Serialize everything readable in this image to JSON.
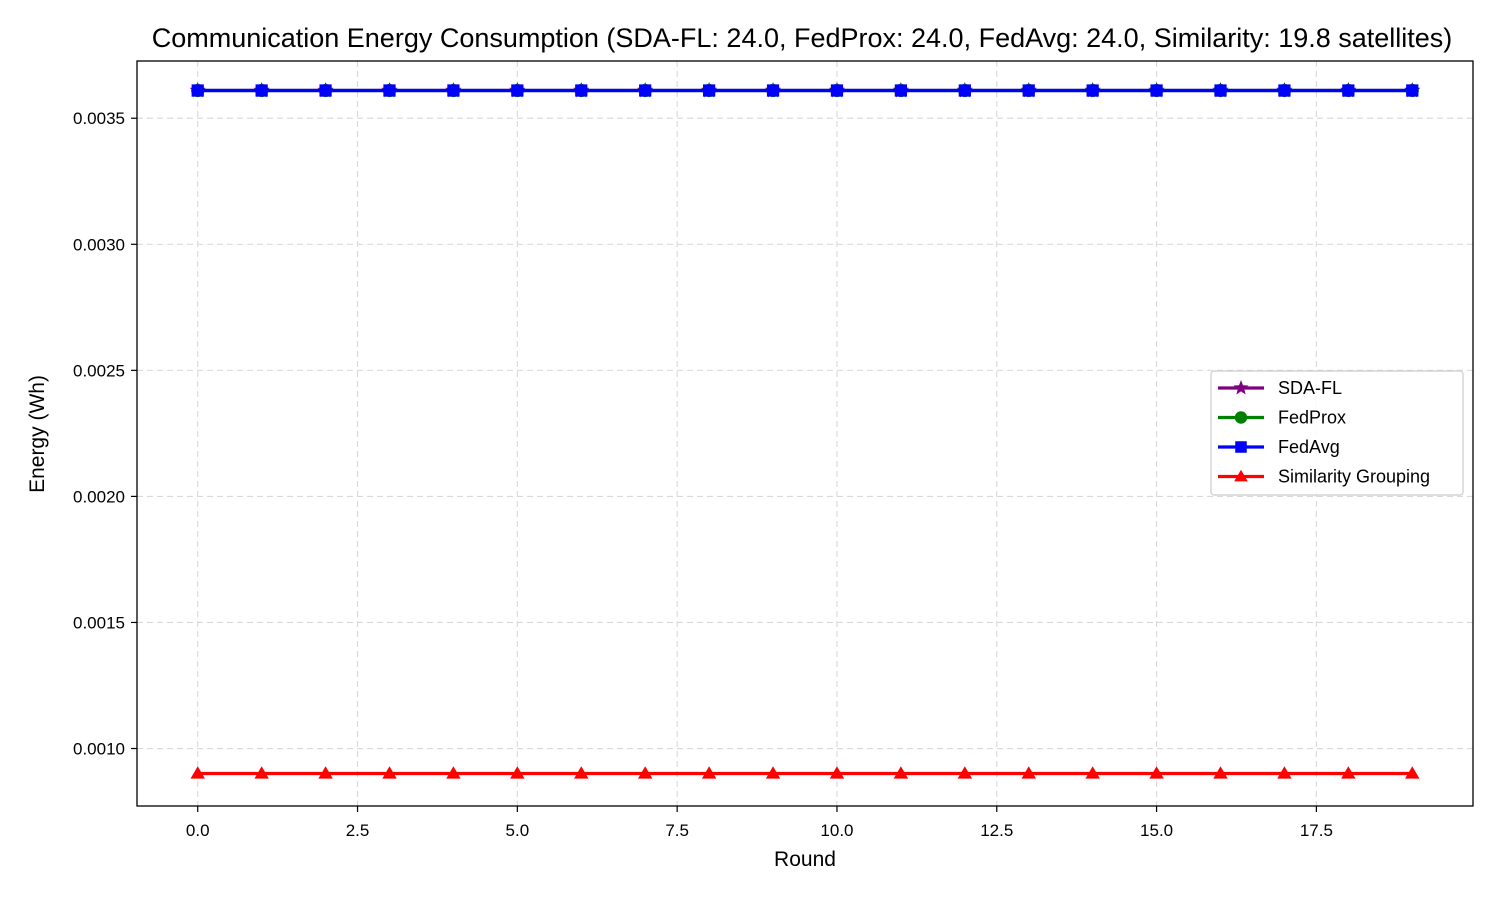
{
  "chart_data": {
    "type": "line",
    "title": "Communication Energy Consumption (SDA-FL: 24.0, FedProx: 24.0, FedAvg: 24.0, Similarity: 19.8 satellites)",
    "xlabel": "Round",
    "ylabel": "Energy (Wh)",
    "xlim": [
      -0.95,
      19.95
    ],
    "ylim": [
      0.000772,
      0.003727
    ],
    "xticks": [
      0.0,
      2.5,
      5.0,
      7.5,
      10.0,
      12.5,
      15.0,
      17.5
    ],
    "xtick_labels": [
      "0.0",
      "2.5",
      "5.0",
      "7.5",
      "10.0",
      "12.5",
      "15.0",
      "17.5"
    ],
    "yticks": [
      0.001,
      0.0015,
      0.002,
      0.0025,
      0.003,
      0.0035
    ],
    "ytick_labels": [
      "0.0010",
      "0.0015",
      "0.0020",
      "0.0025",
      "0.0030",
      "0.0035"
    ],
    "grid": true,
    "legend_position": "center-right",
    "x": [
      0,
      1,
      2,
      3,
      4,
      5,
      6,
      7,
      8,
      9,
      10,
      11,
      12,
      13,
      14,
      15,
      16,
      17,
      18,
      19
    ],
    "series": [
      {
        "name": "SDA-FL",
        "color": "#800080",
        "marker": "star",
        "values": [
          0.00361,
          0.00361,
          0.00361,
          0.00361,
          0.00361,
          0.00361,
          0.00361,
          0.00361,
          0.00361,
          0.00361,
          0.00361,
          0.00361,
          0.00361,
          0.00361,
          0.00361,
          0.00361,
          0.00361,
          0.00361,
          0.00361,
          0.00361
        ]
      },
      {
        "name": "FedProx",
        "color": "#008000",
        "marker": "circle",
        "values": [
          0.00361,
          0.00361,
          0.00361,
          0.00361,
          0.00361,
          0.00361,
          0.00361,
          0.00361,
          0.00361,
          0.00361,
          0.00361,
          0.00361,
          0.00361,
          0.00361,
          0.00361,
          0.00361,
          0.00361,
          0.00361,
          0.00361,
          0.00361
        ]
      },
      {
        "name": "FedAvg",
        "color": "#0000ff",
        "marker": "square",
        "values": [
          0.00361,
          0.00361,
          0.00361,
          0.00361,
          0.00361,
          0.00361,
          0.00361,
          0.00361,
          0.00361,
          0.00361,
          0.00361,
          0.00361,
          0.00361,
          0.00361,
          0.00361,
          0.00361,
          0.00361,
          0.00361,
          0.00361,
          0.00361
        ]
      },
      {
        "name": "Similarity Grouping",
        "color": "#ff0000",
        "marker": "triangle",
        "values": [
          0.000901,
          0.000901,
          0.000901,
          0.000901,
          0.000901,
          0.000901,
          0.000901,
          0.000901,
          0.000901,
          0.000901,
          0.000901,
          0.000901,
          0.000901,
          0.000901,
          0.000901,
          0.000901,
          0.000901,
          0.000901,
          0.000901,
          0.000901
        ]
      }
    ]
  }
}
